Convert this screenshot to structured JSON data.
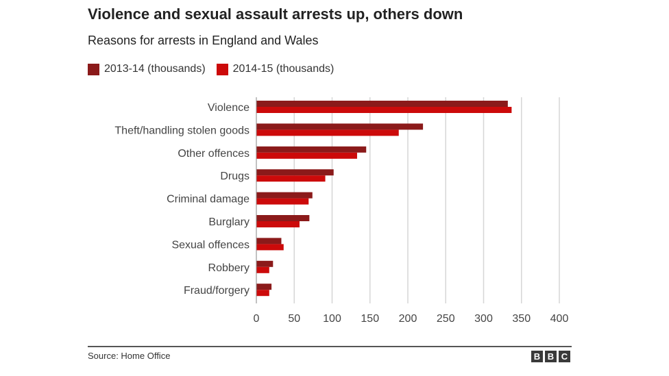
{
  "title": "Violence and sexual assault arrests up, others down",
  "subtitle": "Reasons for arrests in England and Wales",
  "source": "Source: Home Office",
  "brand": [
    "B",
    "B",
    "C"
  ],
  "colors": {
    "series_2013": "#8b1a1a",
    "series_2014": "#cc0a0a",
    "grid": "#d6d6d6"
  },
  "chart_data": {
    "type": "bar",
    "orientation": "horizontal",
    "categories": [
      "Violence",
      "Theft/handling stolen goods",
      "Other offences",
      "Drugs",
      "Criminal damage",
      "Burglary",
      "Sexual offences",
      "Robbery",
      "Fraud/forgery"
    ],
    "series": [
      {
        "name": "2013-14 (thousands)",
        "values": [
          332,
          220,
          145,
          102,
          74,
          70,
          33,
          22,
          20
        ]
      },
      {
        "name": "2014-15 (thousands)",
        "values": [
          337,
          188,
          133,
          91,
          69,
          57,
          36,
          17,
          17
        ]
      }
    ],
    "xlim": [
      0,
      400
    ],
    "xticks": [
      0,
      50,
      100,
      150,
      200,
      250,
      300,
      350,
      400
    ],
    "grid": true,
    "legend_position": "top-left"
  }
}
